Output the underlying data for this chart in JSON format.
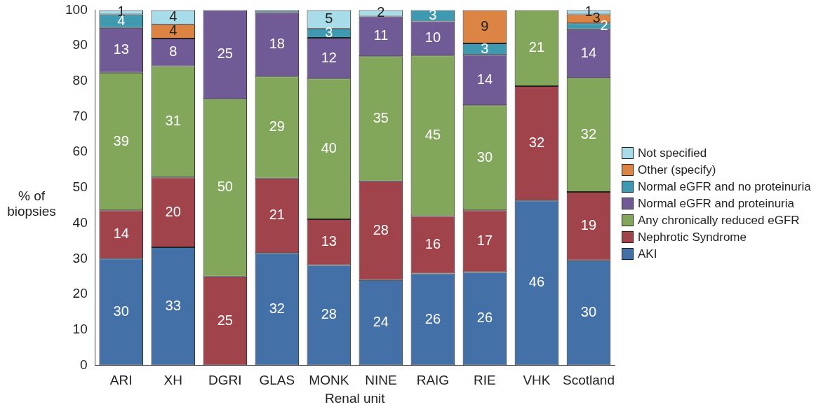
{
  "chart_data": {
    "type": "bar",
    "stacked": true,
    "xlabel": "Renal unit",
    "ylabel": "% of biopsies",
    "categories": [
      "ARI",
      "XH",
      "DGRI",
      "GLAS",
      "MONK",
      "NINE",
      "RAIG",
      "RIE",
      "VHK",
      "Scotland"
    ],
    "ylim": [
      0,
      100
    ],
    "yticks": [
      0,
      10,
      20,
      30,
      40,
      50,
      60,
      70,
      80,
      90,
      100
    ],
    "grid": false,
    "legend": "right",
    "series": [
      {
        "name": "AKI",
        "color": "#4470a8",
        "values": [
          30,
          33.2,
          0,
          31.6,
          28.2,
          24,
          25.8,
          26.2,
          46.4,
          29.5
        ],
        "value_labels": [
          "30",
          "33",
          null,
          "32",
          "28",
          "24",
          "26",
          "26",
          "46",
          "30"
        ]
      },
      {
        "name": "Nephrotic Syndrome",
        "color": "#a0434a",
        "values": [
          13.6,
          19.7,
          25,
          21,
          12.9,
          27.8,
          16.2,
          17.4,
          32.2,
          19.3
        ],
        "value_labels": [
          "14",
          "20",
          "25",
          "21",
          "13",
          "28",
          "16",
          "17",
          "32",
          "19"
        ]
      },
      {
        "name": "Any chronically reduced eGFR",
        "color": "#82a75a",
        "values": [
          38.8,
          31.3,
          50,
          28.7,
          39.6,
          35.2,
          45.2,
          29.6,
          21.4,
          32.1
        ],
        "value_labels": [
          "39",
          "31",
          "50",
          "29",
          "40",
          "35",
          "45",
          "30",
          "21",
          "32"
        ]
      },
      {
        "name": "Normal eGFR and proteinuria",
        "color": "#715b96",
        "values": [
          12.6,
          7.8,
          25,
          18.1,
          11.5,
          11.2,
          9.6,
          14.2,
          0,
          13.7
        ],
        "value_labels": [
          "13",
          "8",
          "25",
          "18",
          "12",
          "11",
          "10",
          "14",
          null,
          "14"
        ]
      },
      {
        "name": "Normal eGFR and no proteinuria",
        "color": "#3f9ab1",
        "values": [
          3.8,
          0,
          0,
          0.6,
          2.6,
          0,
          3.2,
          3.2,
          0,
          1.7
        ],
        "value_labels": [
          "4",
          null,
          null,
          null,
          "3",
          null,
          "3",
          "3",
          null,
          "2"
        ]
      },
      {
        "name": "Other (specify)",
        "color": "#dc8443",
        "values": [
          0,
          4,
          0,
          0,
          0,
          0,
          0,
          9.4,
          0,
          2.5
        ],
        "value_labels": [
          null,
          "4",
          null,
          null,
          null,
          null,
          null,
          "9",
          null,
          "3"
        ]
      },
      {
        "name": "Not specified",
        "color": "#a8dce8",
        "values": [
          1.2,
          4,
          0,
          0,
          5.2,
          1.8,
          0,
          0,
          0,
          1.2
        ],
        "value_labels": [
          "1",
          "4",
          null,
          null,
          "5",
          "2",
          null,
          null,
          null,
          "1"
        ]
      }
    ]
  }
}
